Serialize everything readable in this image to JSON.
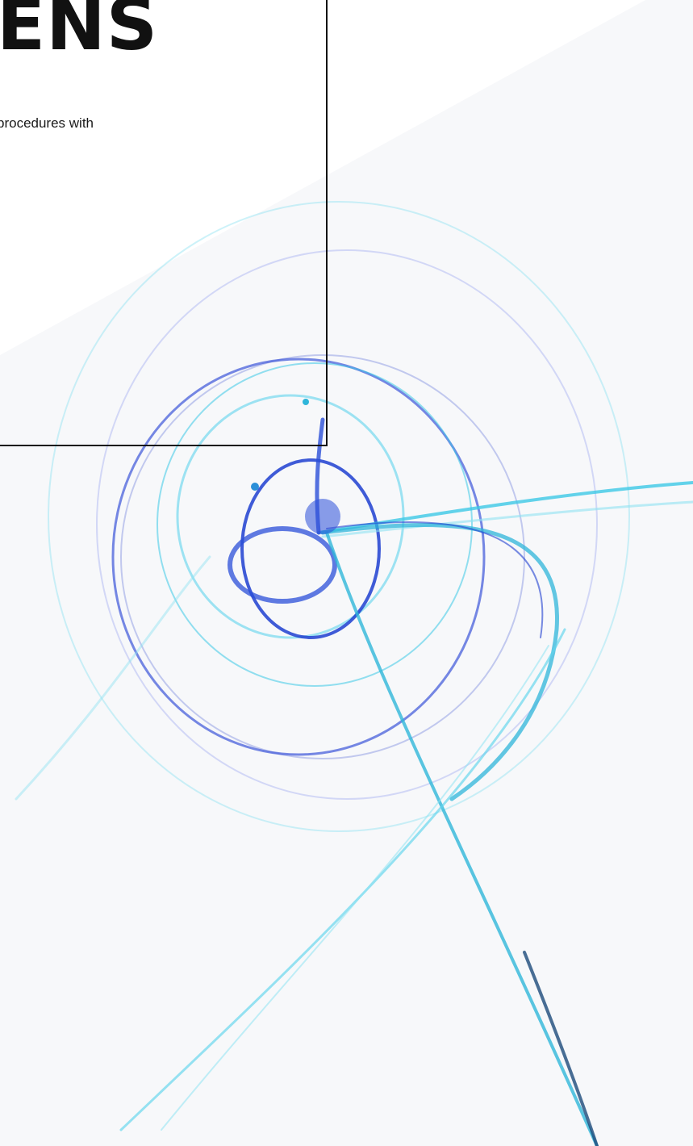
{
  "hero": {
    "title": "ENS",
    "text": "procedures with"
  },
  "colors": {
    "ink": "#111111",
    "lens_blue": "#2b4fd8",
    "lens_cyan": "#3cc8e6",
    "lens_light": "#8fe3f2",
    "panel_bg": "#f6f8fa"
  }
}
